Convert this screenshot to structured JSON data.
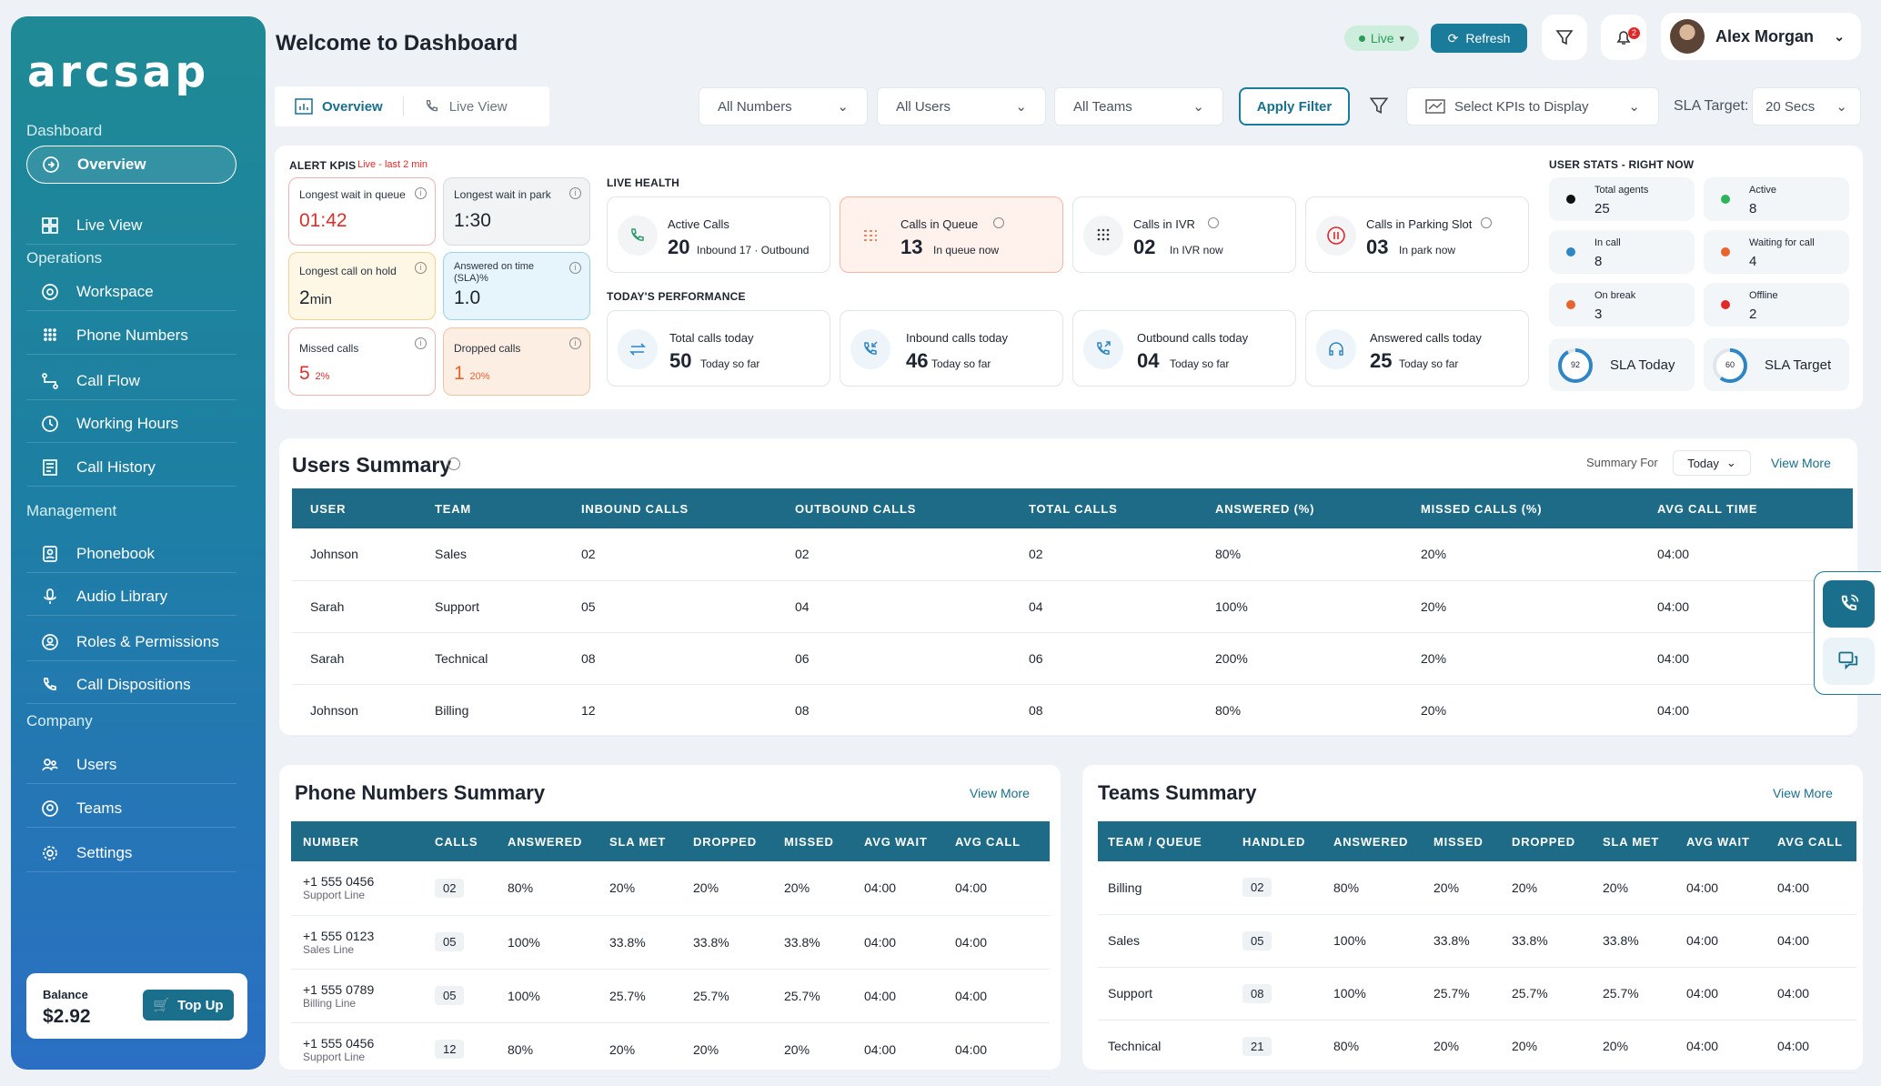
{
  "sidebar": {
    "logo": "arcsap",
    "sections": {
      "dashboard": "Dashboard",
      "operations": "Operations",
      "management": "Management",
      "company": "Company"
    },
    "items": {
      "overview": "Overview",
      "live_view": "Live View",
      "workspace": "Workspace",
      "phone_numbers": "Phone Numbers",
      "call_flow": "Call Flow",
      "working_hours": "Working Hours",
      "call_history": "Call History",
      "phonebook": "Phonebook",
      "audio_library": "Audio Library",
      "roles": "Roles & Permissions",
      "dispositions": "Call Dispositions",
      "users": "Users",
      "teams": "Teams",
      "settings": "Settings"
    },
    "balance": {
      "label": "Balance",
      "value": "$2.92",
      "topup": "Top Up"
    }
  },
  "header": {
    "title": "Welcome to Dashboard",
    "live": "Live",
    "refresh": "Refresh",
    "notif_count": "2",
    "user_name": "Alex Morgan"
  },
  "toolbar": {
    "tab_overview": "Overview",
    "tab_live": "Live View",
    "numbers": "All Numbers",
    "users": "All Users",
    "teams": "All Teams",
    "apply": "Apply Filter",
    "kpis": "Select KPIs to Display",
    "sla_label": "SLA Target:",
    "sla_value": "20 Secs"
  },
  "alert_kpis": {
    "title": "ALERT KPIS",
    "live_note": "Live - last 2 min",
    "items": [
      {
        "title": "Longest wait in queue",
        "value": "01:42"
      },
      {
        "title": "Longest wait in park",
        "value": "1:30"
      },
      {
        "title": "Longest call on hold",
        "value": "2",
        "unit": "min"
      },
      {
        "title": "Answered on time (SLA)%",
        "value": "1.0"
      },
      {
        "title": "Missed calls",
        "value": "5",
        "pct": "2%"
      },
      {
        "title": "Dropped calls",
        "value": "1",
        "pct": "20%"
      }
    ]
  },
  "live_health": {
    "title": "LIVE HEALTH",
    "items": [
      {
        "title": "Active Calls",
        "value": "20",
        "sub": "Inbound 17 · Outbound"
      },
      {
        "title": "Calls in Queue",
        "value": "13",
        "sub": "In queue now"
      },
      {
        "title": "Calls in IVR",
        "value": "02",
        "sub": "In IVR now"
      },
      {
        "title": "Calls in Parking Slot",
        "value": "03",
        "sub": "In park now"
      }
    ]
  },
  "performance": {
    "title": "TODAY'S PERFORMANCE",
    "items": [
      {
        "title": "Total calls today",
        "value": "50",
        "sub": "Today so far"
      },
      {
        "title": "Inbound calls today",
        "value": "46",
        "sub": "Today so far"
      },
      {
        "title": "Outbound calls today",
        "value": "04",
        "sub": "Today so far"
      },
      {
        "title": "Answered calls today",
        "value": "25",
        "sub": "Today so far"
      }
    ]
  },
  "user_stats": {
    "title": "USER STATS - RIGHT NOW",
    "items": [
      {
        "title": "Total agents",
        "value": "25",
        "color": "#111111"
      },
      {
        "title": "Active",
        "value": "8",
        "color": "#2fb35a"
      },
      {
        "title": "In call",
        "value": "8",
        "color": "#2f86c4"
      },
      {
        "title": "Waiting for call",
        "value": "4",
        "color": "#e8632d"
      },
      {
        "title": "On break",
        "value": "3",
        "color": "#e8632d"
      },
      {
        "title": "Offline",
        "value": "2",
        "color": "#e02a2a"
      }
    ],
    "sla_today": {
      "pct": "92",
      "label": "SLA Today",
      "fraction": 0.92
    },
    "sla_target": {
      "pct": "60",
      "label": "SLA Target",
      "fraction": 0.6
    }
  },
  "users_summary": {
    "title": "Users Summary",
    "summary_for_label": "Summary For",
    "summary_for_value": "Today",
    "view_more": "View More",
    "columns": [
      "USER",
      "TEAM",
      "INBOUND CALLS",
      "OUTBOUND CALLS",
      "TOTAL CALLS",
      "ANSWERED (%)",
      "MISSED CALLS (%)",
      "AVG CALL TIME"
    ],
    "rows": [
      [
        "Johnson",
        "Sales",
        "02",
        "02",
        "02",
        "80%",
        "20%",
        "04:00"
      ],
      [
        "Sarah",
        "Support",
        "05",
        "04",
        "04",
        "100%",
        "20%",
        "04:00"
      ],
      [
        "Sarah",
        "Technical",
        "08",
        "06",
        "06",
        "200%",
        "20%",
        "04:00"
      ],
      [
        "Johnson",
        "Billing",
        "12",
        "08",
        "08",
        "80%",
        "20%",
        "04:00"
      ]
    ]
  },
  "phone_summary": {
    "title": "Phone Numbers Summary",
    "view_more": "View More",
    "columns": [
      "NUMBER",
      "CALLS",
      "ANSWERED",
      "SLA MET",
      "DROPPED",
      "MISSED",
      "AVG WAIT",
      "AVG CALL"
    ],
    "rows": [
      {
        "number": "+1 555 0456",
        "line": "Support Line",
        "cells": [
          "02",
          "80%",
          "20%",
          "20%",
          "20%",
          "04:00",
          "04:00"
        ]
      },
      {
        "number": "+1 555 0123",
        "line": "Sales Line",
        "cells": [
          "05",
          "100%",
          "33.8%",
          "33.8%",
          "33.8%",
          "04:00",
          "04:00"
        ]
      },
      {
        "number": "+1 555 0789",
        "line": "Billing Line",
        "cells": [
          "05",
          "100%",
          "25.7%",
          "25.7%",
          "25.7%",
          "04:00",
          "04:00"
        ]
      },
      {
        "number": "+1 555 0456",
        "line": "Support Line",
        "cells": [
          "12",
          "80%",
          "20%",
          "20%",
          "20%",
          "04:00",
          "04:00"
        ]
      }
    ]
  },
  "teams_summary": {
    "title": "Teams Summary",
    "view_more": "View More",
    "columns": [
      "TEAM / QUEUE",
      "HANDLED",
      "ANSWERED",
      "MISSED",
      "DROPPED",
      "SLA MET",
      "AVG WAIT",
      "AVG CALL"
    ],
    "rows": [
      [
        "Billing",
        "02",
        "80%",
        "20%",
        "20%",
        "20%",
        "04:00",
        "04:00"
      ],
      [
        "Sales",
        "05",
        "100%",
        "33.8%",
        "33.8%",
        "33.8%",
        "04:00",
        "04:00"
      ],
      [
        "Support",
        "08",
        "100%",
        "25.7%",
        "25.7%",
        "25.7%",
        "04:00",
        "04:00"
      ],
      [
        "Technical",
        "21",
        "80%",
        "20%",
        "20%",
        "20%",
        "04:00",
        "04:00"
      ]
    ]
  }
}
